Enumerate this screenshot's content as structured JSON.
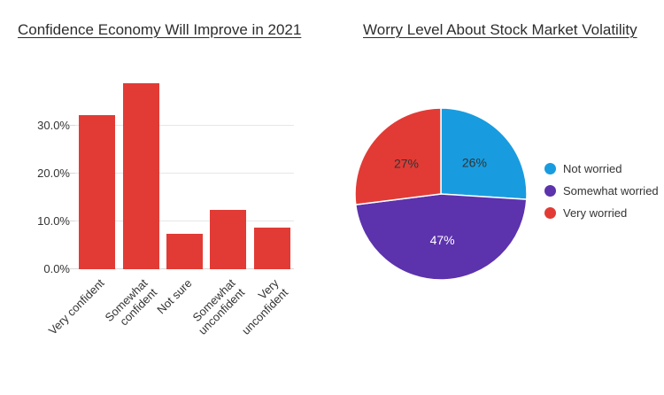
{
  "chart_data": [
    {
      "type": "bar",
      "title": "Confidence Economy Will Improve in 2021",
      "categories": [
        "Very confident",
        "Somewhat\nconfident",
        "Not sure",
        "Somewhat\nunconfident",
        "Very\nunconfident"
      ],
      "values": [
        32.3,
        38.9,
        7.5,
        12.4,
        8.7
      ],
      "bar_color": "#e23b35",
      "xlabel": "",
      "ylabel": "",
      "ylim": [
        0,
        40
      ],
      "yticks": [
        {
          "value": 0,
          "label": "0.0%"
        },
        {
          "value": 10,
          "label": "10.0%"
        },
        {
          "value": 20,
          "label": "20.0%"
        },
        {
          "value": 30,
          "label": "30.0%"
        }
      ],
      "grid": true,
      "legend_position": "none"
    },
    {
      "type": "pie",
      "title": "Worry Level About Stock Market Volatility",
      "start": "top",
      "direction": "clockwise",
      "legend_position": "right",
      "slices": [
        {
          "label": "Not worried",
          "value": 26,
          "display": "26%",
          "color": "#189cdf",
          "text_color": "#333333"
        },
        {
          "label": "Somewhat worried",
          "value": 47,
          "display": "47%",
          "color": "#5c32ad",
          "text_color": "#ffffff"
        },
        {
          "label": "Very worried",
          "value": 27,
          "display": "27%",
          "color": "#e23b35",
          "text_color": "#333333"
        }
      ]
    }
  ]
}
